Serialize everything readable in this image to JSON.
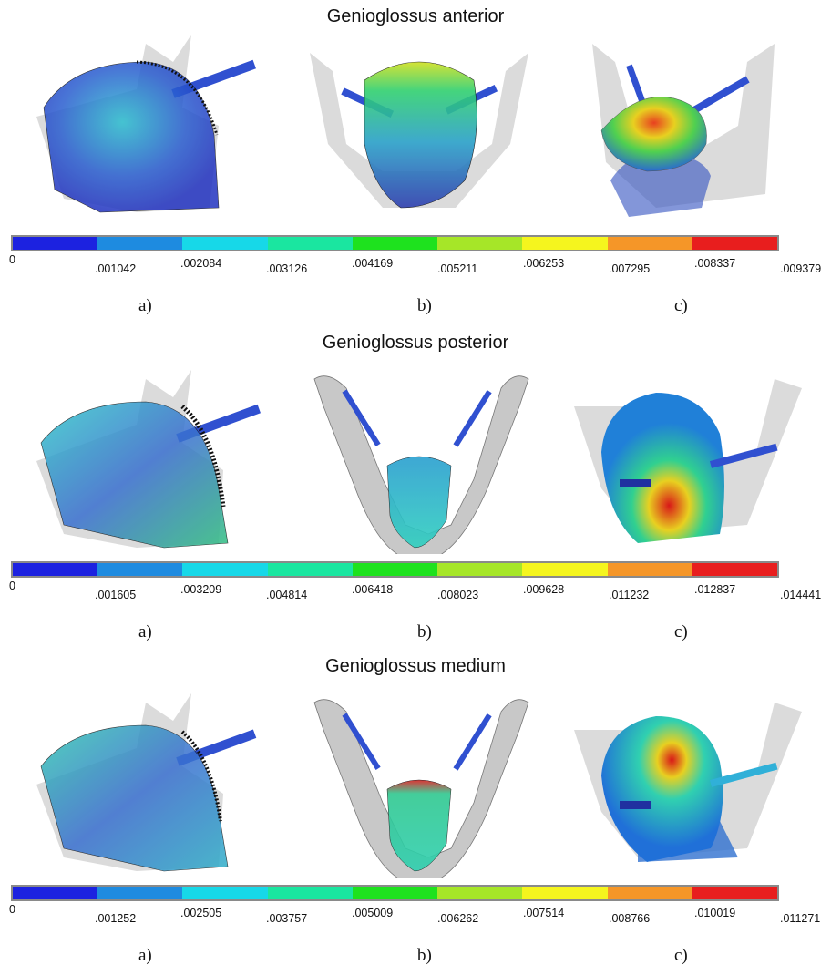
{
  "panels": [
    {
      "title": "Genioglossus anterior",
      "ticks": [
        "0",
        ".001042",
        ".002084",
        ".003126",
        ".004169",
        ".005211",
        ".006253",
        ".007295",
        ".008337",
        ".009379"
      ],
      "sublabels": [
        "a)",
        "b)",
        "c)"
      ]
    },
    {
      "title": "Genioglossus posterior",
      "ticks": [
        "0",
        ".001605",
        ".003209",
        ".004814",
        ".006418",
        ".008023",
        ".009628",
        ".011232",
        ".012837",
        ".014441"
      ],
      "sublabels": [
        "a)",
        "b)",
        "c)"
      ]
    },
    {
      "title": "Genioglossus medium",
      "ticks": [
        "0",
        ".001252",
        ".002505",
        ".003757",
        ".005009",
        ".006262",
        ".007514",
        ".008766",
        ".010019",
        ".011271"
      ],
      "sublabels": [
        "a)",
        "b)",
        "c)"
      ]
    }
  ],
  "colors": {
    "scale": [
      "#1c22e0",
      "#1e8be0",
      "#17d8e8",
      "#1ae6a0",
      "#1ee21e",
      "#a6e628",
      "#f5f51e",
      "#f59628",
      "#e81e1e"
    ],
    "bone": "#d2d2d2",
    "mesh": "#111111"
  }
}
